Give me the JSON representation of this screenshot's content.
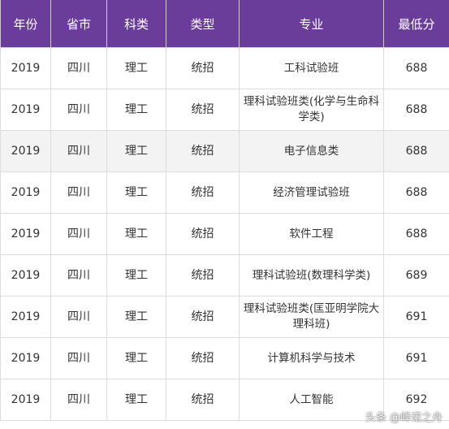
{
  "table": {
    "headers": [
      "年份",
      "省市",
      "科类",
      "类型",
      "专业",
      "最低分"
    ],
    "rows": [
      [
        "2019",
        "四川",
        "理工",
        "统招",
        "工科试验班",
        "688"
      ],
      [
        "2019",
        "四川",
        "理工",
        "统招",
        "理科试验班类(化学与生命科学类)",
        "688"
      ],
      [
        "2019",
        "四川",
        "理工",
        "统招",
        "电子信息类",
        "688"
      ],
      [
        "2019",
        "四川",
        "理工",
        "统招",
        "经济管理试验班",
        "688"
      ],
      [
        "2019",
        "四川",
        "理工",
        "统招",
        "软件工程",
        "688"
      ],
      [
        "2019",
        "四川",
        "理工",
        "统招",
        "理科试验班(数理科学类)",
        "689"
      ],
      [
        "2019",
        "四川",
        "理工",
        "统招",
        "理科试验班类(匡亚明学院大理科班)",
        "691"
      ],
      [
        "2019",
        "四川",
        "理工",
        "统招",
        "计算机科学与技术",
        "691"
      ],
      [
        "2019",
        "四川",
        "理工",
        "统招",
        "人工智能",
        "692"
      ]
    ]
  },
  "watermark": "头条 @峄诺之舟",
  "colors": {
    "header_bg": "#6b3d9a",
    "header_text": "#ffffff",
    "row_shade": "#f3f3f3",
    "border": "#dcdcdc"
  }
}
